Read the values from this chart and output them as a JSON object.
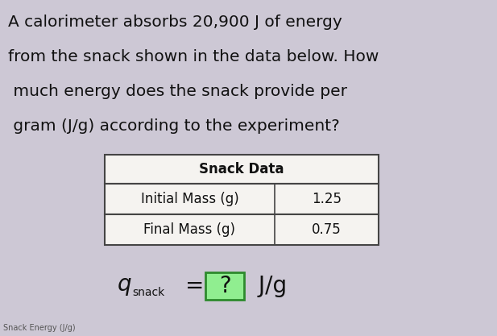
{
  "background_color": "#cdc8d5",
  "question_lines": [
    "A calorimeter absorbs 20,900 J of energy",
    "from the snack shown in the data below. How",
    " much energy does the snack provide per",
    " gram (J/g) according to the experiment?"
  ],
  "table_header": "Snack Data",
  "table_rows": [
    [
      "Initial Mass (g)",
      "1.25"
    ],
    [
      "Final Mass (g)",
      "0.75"
    ]
  ],
  "watermark": "Snack Energy (J/g)",
  "question_fontsize": 14.5,
  "table_header_fontsize": 12,
  "table_body_fontsize": 12,
  "formula_fontsize": 20,
  "formula_sub_fontsize": 10,
  "watermark_fontsize": 7,
  "box_color": "#90ee90",
  "box_border_color": "#2d8a2d",
  "text_color": "#111111",
  "table_bg": "#f5f3f0",
  "table_border": "#444444",
  "fig_width": 6.17,
  "fig_height": 4.17,
  "dpi": 100
}
